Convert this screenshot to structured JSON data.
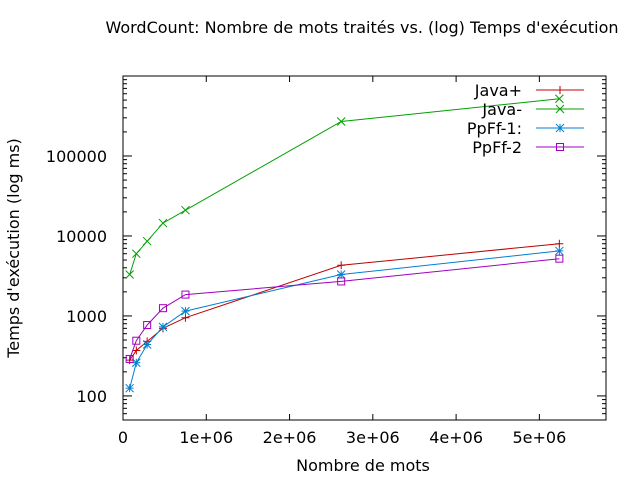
{
  "chart_data": {
    "type": "line",
    "title": "WordCount: Nombre de mots traités vs. (log) Temps d'exécution",
    "xlabel": "Nombre de mots",
    "ylabel": "Temps d'exécution (log ms)",
    "xlim": [
      0,
      5800000
    ],
    "ylim": [
      50,
      1000000
    ],
    "yscale": "log",
    "grid": false,
    "legend_position": "top-right",
    "x_ticks": [
      {
        "value": 0,
        "label": "0"
      },
      {
        "value": 1000000,
        "label": "1e+06"
      },
      {
        "value": 2000000,
        "label": "2e+06"
      },
      {
        "value": 3000000,
        "label": "3e+06"
      },
      {
        "value": 4000000,
        "label": "4e+06"
      },
      {
        "value": 5000000,
        "label": "5e+06"
      }
    ],
    "y_ticks": [
      {
        "value": 100,
        "label": "100"
      },
      {
        "value": 1000,
        "label": "1000"
      },
      {
        "value": 10000,
        "label": "10000"
      },
      {
        "value": 100000,
        "label": "100000"
      }
    ],
    "series": [
      {
        "name": "Java+",
        "color": "#c00000",
        "marker": "plus",
        "x": [
          80000,
          160000,
          290000,
          480000,
          750000,
          2620000,
          5240000
        ],
        "y": [
          280,
          370,
          480,
          700,
          950,
          4300,
          8000
        ]
      },
      {
        "name": "Java-",
        "color": "#00a000",
        "marker": "cross",
        "x": [
          80000,
          160000,
          290000,
          480000,
          750000,
          2620000,
          5240000
        ],
        "y": [
          3300,
          6000,
          8600,
          14500,
          21000,
          270000,
          520000
        ]
      },
      {
        "name": "PpFf-1:",
        "color": "#0080d0",
        "marker": "star",
        "x": [
          80000,
          160000,
          290000,
          480000,
          750000,
          2620000,
          5240000
        ],
        "y": [
          125,
          260,
          440,
          730,
          1150,
          3300,
          6500
        ]
      },
      {
        "name": "PpFf-2",
        "color": "#a000c0",
        "marker": "square",
        "x": [
          80000,
          160000,
          290000,
          480000,
          750000,
          2620000,
          5240000
        ],
        "y": [
          290,
          490,
          770,
          1250,
          1850,
          2700,
          5200
        ]
      }
    ]
  }
}
